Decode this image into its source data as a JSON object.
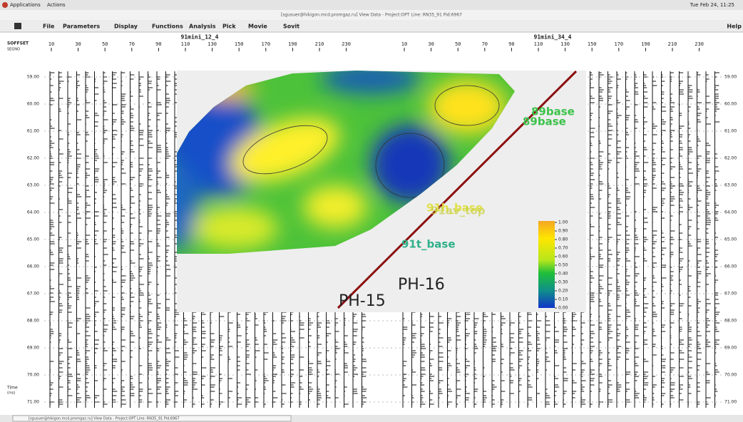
{
  "top_bar": {
    "applications": "Applications",
    "actions": "Actions",
    "clock": "Tue Feb 24, 11:25"
  },
  "window_title": "[sgusuer@hikigon.mcd.promgaz.ru] View Data  -  Project:OPT  Line: RN35_91  Pid:6967",
  "menu": [
    "File",
    "Parameters",
    "Display",
    "Functions",
    "Analysis",
    "Pick",
    "Movie",
    "Sovit"
  ],
  "help": "Help",
  "axis_header": {
    "offset": "SOFFSET",
    "segno": "SEGNO"
  },
  "panels": [
    {
      "title": "91mini_12_4",
      "columns": [
        "10",
        "30",
        "50",
        "70",
        "90",
        "110",
        "130",
        "150",
        "170",
        "190",
        "210",
        "230"
      ]
    },
    {
      "title": "91mini_34_4",
      "columns": [
        "10",
        "30",
        "50",
        "70",
        "90",
        "110",
        "130",
        "150",
        "170",
        "190",
        "210",
        "230"
      ]
    }
  ],
  "time_labels": [
    "59.00",
    "60.00",
    "61.00",
    "62.00",
    "63.00",
    "64.00",
    "65.00",
    "66.00",
    "67.00",
    "68.00",
    "69.00",
    "70.00",
    "71.00"
  ],
  "time_axis": {
    "label": "Time",
    "unit": "(ms)"
  },
  "map": {
    "horizons": [
      "89base",
      "89base",
      "91h_base",
      "91av_top",
      "91t_base"
    ],
    "wells": [
      "PH-16",
      "PH-15"
    ],
    "colorbar_ticks": [
      "1.00",
      "0.90",
      "0.80",
      "0.70",
      "0.60",
      "0.50",
      "0.40",
      "0.30",
      "0.20",
      "0.10",
      "0.00"
    ]
  },
  "taskbar": "[sgusuer@hikigon.mcd.promgaz.ru] View Data  -  Project:OPT  Line: RN35_91  Pid:6967"
}
